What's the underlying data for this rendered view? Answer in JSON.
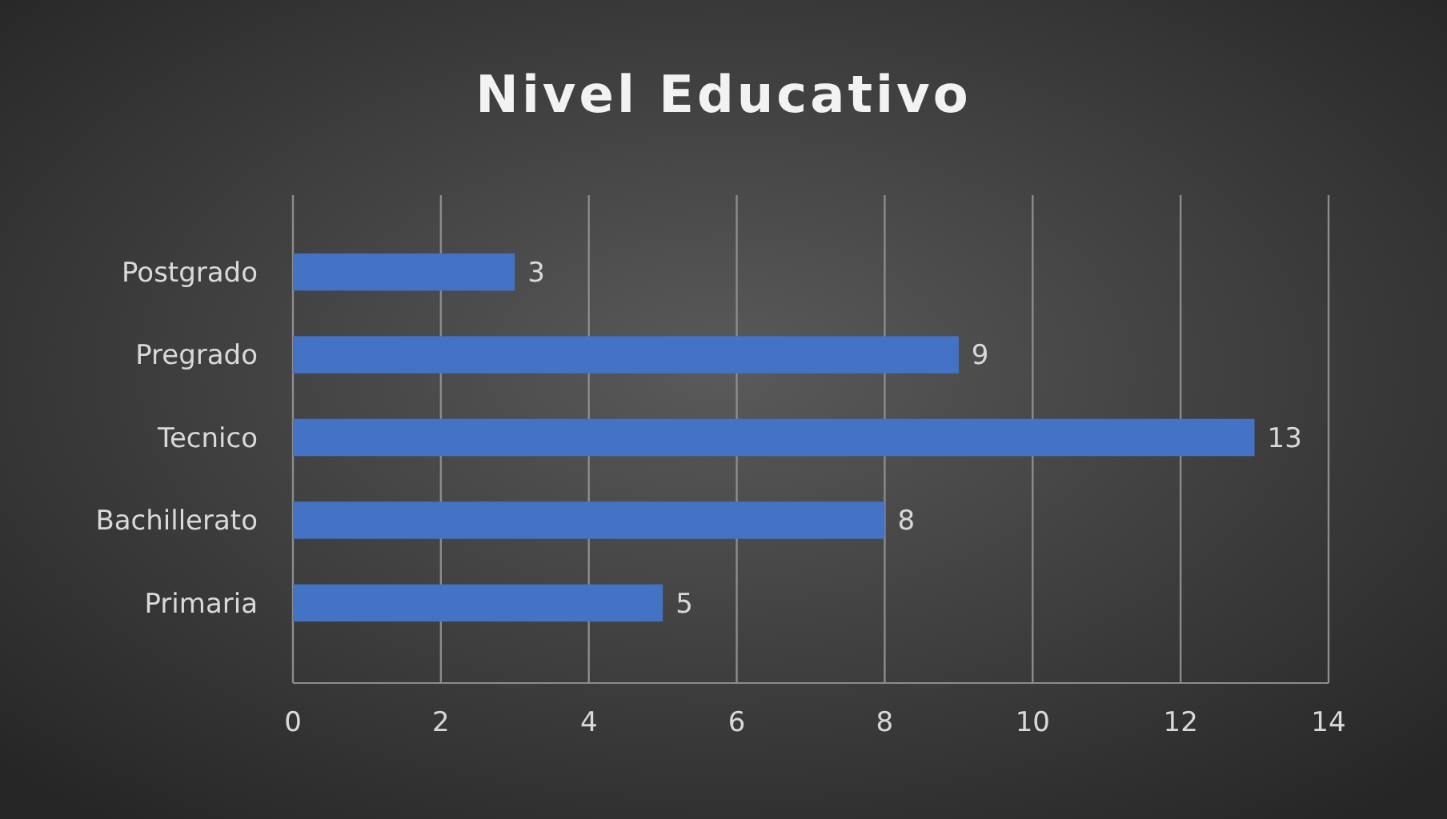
{
  "chart_data": {
    "type": "bar",
    "orientation": "horizontal",
    "title": "Nivel Educativo",
    "categories": [
      "Postgrado",
      "Pregrado",
      "Tecnico",
      "Bachillerato",
      "Primaria"
    ],
    "values": [
      3,
      9,
      13,
      8,
      5
    ],
    "color": "#4472c4",
    "xlim": [
      0,
      14
    ],
    "xticks": [
      0,
      2,
      4,
      6,
      8,
      10,
      12,
      14
    ],
    "grid": "x",
    "data_labels": true
  }
}
